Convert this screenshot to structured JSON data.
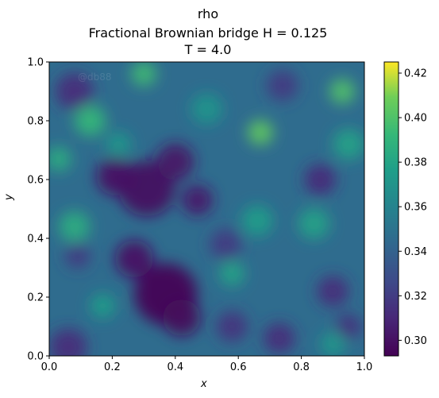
{
  "chart_data": {
    "type": "heatmap",
    "title_lines": [
      "rho",
      "Fractional Brownian bridge H = 0.125",
      "T = 4.0"
    ],
    "xlabel": "x",
    "ylabel": "y",
    "xlim": [
      0.0,
      1.0
    ],
    "ylim": [
      0.0,
      1.0
    ],
    "x_ticks": [
      0.0,
      0.2,
      0.4,
      0.6,
      0.8,
      1.0
    ],
    "y_ticks": [
      0.0,
      0.2,
      0.4,
      0.6,
      0.8,
      1.0
    ],
    "x_tick_labels": [
      "0.0",
      "0.2",
      "0.4",
      "0.6",
      "0.8",
      "1.0"
    ],
    "y_tick_labels": [
      "0.0",
      "0.2",
      "0.4",
      "0.6",
      "0.8",
      "1.0"
    ],
    "colormap": "viridis",
    "colorbar_range": [
      0.293,
      0.425
    ],
    "colorbar_ticks": [
      0.3,
      0.32,
      0.34,
      0.36,
      0.38,
      0.4,
      0.42
    ],
    "colorbar_tick_labels": [
      "0.30",
      "0.32",
      "0.34",
      "0.36",
      "0.38",
      "0.40",
      "0.42"
    ],
    "watermark": "@db88",
    "background_level": 0.345,
    "features": [
      {
        "x": 0.37,
        "y": 0.21,
        "r": 0.1,
        "value": 0.293
      },
      {
        "x": 0.27,
        "y": 0.33,
        "r": 0.06,
        "value": 0.3
      },
      {
        "x": 0.42,
        "y": 0.13,
        "r": 0.06,
        "value": 0.296
      },
      {
        "x": 0.31,
        "y": 0.57,
        "r": 0.09,
        "value": 0.298
      },
      {
        "x": 0.21,
        "y": 0.61,
        "r": 0.06,
        "value": 0.3
      },
      {
        "x": 0.4,
        "y": 0.66,
        "r": 0.06,
        "value": 0.301
      },
      {
        "x": 0.47,
        "y": 0.53,
        "r": 0.05,
        "value": 0.303
      },
      {
        "x": 0.08,
        "y": 0.9,
        "r": 0.06,
        "value": 0.312
      },
      {
        "x": 0.06,
        "y": 0.03,
        "r": 0.06,
        "value": 0.312
      },
      {
        "x": 0.09,
        "y": 0.34,
        "r": 0.04,
        "value": 0.318
      },
      {
        "x": 0.86,
        "y": 0.6,
        "r": 0.05,
        "value": 0.31
      },
      {
        "x": 0.58,
        "y": 0.1,
        "r": 0.05,
        "value": 0.315
      },
      {
        "x": 0.73,
        "y": 0.06,
        "r": 0.05,
        "value": 0.312
      },
      {
        "x": 0.9,
        "y": 0.22,
        "r": 0.05,
        "value": 0.312
      },
      {
        "x": 0.95,
        "y": 0.1,
        "r": 0.04,
        "value": 0.314
      },
      {
        "x": 0.56,
        "y": 0.38,
        "r": 0.05,
        "value": 0.318
      },
      {
        "x": 0.74,
        "y": 0.92,
        "r": 0.05,
        "value": 0.318
      },
      {
        "x": 0.13,
        "y": 0.8,
        "r": 0.05,
        "value": 0.392
      },
      {
        "x": 0.67,
        "y": 0.76,
        "r": 0.04,
        "value": 0.405
      },
      {
        "x": 0.3,
        "y": 0.96,
        "r": 0.04,
        "value": 0.395
      },
      {
        "x": 0.93,
        "y": 0.9,
        "r": 0.04,
        "value": 0.4
      },
      {
        "x": 0.08,
        "y": 0.44,
        "r": 0.05,
        "value": 0.385
      },
      {
        "x": 0.03,
        "y": 0.67,
        "r": 0.04,
        "value": 0.385
      },
      {
        "x": 0.84,
        "y": 0.45,
        "r": 0.05,
        "value": 0.378
      },
      {
        "x": 0.66,
        "y": 0.46,
        "r": 0.05,
        "value": 0.375
      },
      {
        "x": 0.58,
        "y": 0.28,
        "r": 0.04,
        "value": 0.38
      },
      {
        "x": 0.95,
        "y": 0.72,
        "r": 0.05,
        "value": 0.378
      },
      {
        "x": 0.17,
        "y": 0.17,
        "r": 0.04,
        "value": 0.375
      },
      {
        "x": 0.9,
        "y": 0.04,
        "r": 0.04,
        "value": 0.372
      },
      {
        "x": 0.5,
        "y": 0.84,
        "r": 0.05,
        "value": 0.37
      },
      {
        "x": 0.22,
        "y": 0.72,
        "r": 0.04,
        "value": 0.372
      }
    ]
  }
}
